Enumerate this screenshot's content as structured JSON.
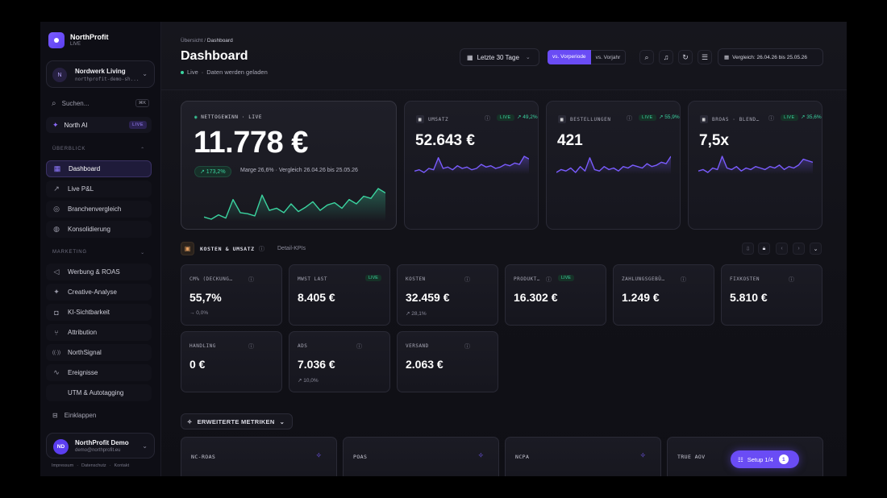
{
  "brand": {
    "name": "NorthProfit",
    "sub": "LIVE"
  },
  "workspace": {
    "initial": "N",
    "name": "Nordwerk Living",
    "sub": "northprofit-demo-sh..."
  },
  "search": {
    "placeholder": "Suchen...",
    "shortcut": "⌘K"
  },
  "north_ai": {
    "label": "North AI",
    "badge": "LIVE"
  },
  "sections": {
    "overview": "ÜBERBLICK",
    "marketing": "MARKETING"
  },
  "nav_overview": [
    {
      "label": "Dashboard",
      "icon": "grid-icon",
      "active": true
    },
    {
      "label": "Live P&L",
      "icon": "trend-icon"
    },
    {
      "label": "Branchenvergleich",
      "icon": "target-icon"
    },
    {
      "label": "Konsolidierung",
      "icon": "globe-icon"
    }
  ],
  "nav_marketing": [
    {
      "label": "Werbung & ROAS",
      "icon": "megaphone-icon"
    },
    {
      "label": "Creative-Analyse",
      "icon": "sparkle-icon"
    },
    {
      "label": "KI-Sichtbarkeit",
      "icon": "bot-icon"
    },
    {
      "label": "Attribution",
      "icon": "branch-icon"
    },
    {
      "label": "NorthSignal",
      "icon": "signal-icon"
    },
    {
      "label": "Ereignisse",
      "icon": "pulse-icon"
    },
    {
      "label": "UTM & Autotagging",
      "icon": "code-icon"
    }
  ],
  "collapse_label": "Einklappen",
  "user": {
    "initials": "ND",
    "name": "NorthProfit Demo",
    "email": "demo@northprofit.eu"
  },
  "footer_links": [
    "Impressum",
    "·",
    "Datenschutz",
    "·",
    "Kontakt"
  ],
  "header": {
    "breadcrumb_root": "Übersicht",
    "breadcrumb_sep": "/",
    "breadcrumb_current": "Dashboard",
    "title": "Dashboard",
    "status_live": "Live",
    "status_sep": "·",
    "status_text": "Daten werden geladen",
    "range": "Letzte 30 Tage",
    "compare_prev": "vs. Vorperiode",
    "compare_year": "vs. Vorjahr",
    "compare_period": "Vergleich: 26.04.26 bis 25.05.26"
  },
  "hero": {
    "label": "NETTOGEWINN · LIVE",
    "value": "11.778 €",
    "chip": "↗ 173,2%",
    "meta": "Marge 26,6% · Vergleich 26.04.26 bis 25.05.26",
    "color": "#3bd4a0",
    "spark": [
      14,
      12,
      16,
      13,
      30,
      18,
      17,
      15,
      34,
      20,
      22,
      18,
      26,
      19,
      23,
      28,
      20,
      25,
      27,
      22,
      30,
      26,
      33,
      31,
      40,
      36
    ]
  },
  "kpis": [
    {
      "label": "UMSATZ",
      "value": "52.643 €",
      "live": "LIVE",
      "pct": "↗ 49,2%",
      "color": "#7a5cff",
      "spark": [
        8,
        9,
        7,
        10,
        9,
        18,
        10,
        11,
        9,
        12,
        10,
        11,
        9,
        10,
        13,
        11,
        12,
        10,
        11,
        13,
        12,
        14,
        13,
        19,
        17
      ]
    },
    {
      "label": "BESTELLUNGEN",
      "value": "421",
      "live": "LIVE",
      "pct": "↗ 55,9%",
      "color": "#7a5cff",
      "spark": [
        8,
        10,
        9,
        11,
        8,
        12,
        9,
        18,
        10,
        9,
        12,
        10,
        11,
        9,
        12,
        11,
        13,
        12,
        11,
        14,
        12,
        13,
        15,
        14,
        19
      ]
    },
    {
      "label": "BROAS · BLEND…",
      "value": "7,5x",
      "live": "LIVE",
      "pct": "↗ 35,6%",
      "color": "#7a5cff",
      "spark": [
        9,
        10,
        8,
        11,
        10,
        19,
        11,
        10,
        12,
        9,
        11,
        10,
        12,
        11,
        10,
        12,
        11,
        13,
        10,
        12,
        11,
        13,
        17,
        16,
        15
      ]
    }
  ],
  "section": {
    "title": "KOSTEN & UMSATZ",
    "sub": "Detail-KPIs"
  },
  "details": [
    {
      "label": "CM% (DECKUNG…",
      "value": "55,7%",
      "delta": "→ 0,0%"
    },
    {
      "label": "MWST LAST",
      "value": "8.405 €",
      "live": "LIVE"
    },
    {
      "label": "KOSTEN",
      "value": "32.459 €",
      "delta": "↗ 28,1%"
    },
    {
      "label": "PRODUKT…",
      "value": "16.302 €",
      "live": "LIVE"
    },
    {
      "label": "ZAHLUNGSGEBÜ…",
      "value": "1.249 €"
    },
    {
      "label": "FIXKOSTEN",
      "value": "5.810 €"
    },
    {
      "label": "HANDLING",
      "value": "0 €"
    },
    {
      "label": "ADS",
      "value": "7.036 €",
      "delta": "↗ 10,0%"
    },
    {
      "label": "VERSAND",
      "value": "2.063 €"
    }
  ],
  "extended": {
    "label": "ERWEITERTE METRIKEN"
  },
  "ext_cards": [
    "NC-ROAS",
    "POAS",
    "NCPA",
    "TRUE AOV"
  ],
  "setup": {
    "label": "Setup 1/4",
    "count": "1"
  }
}
